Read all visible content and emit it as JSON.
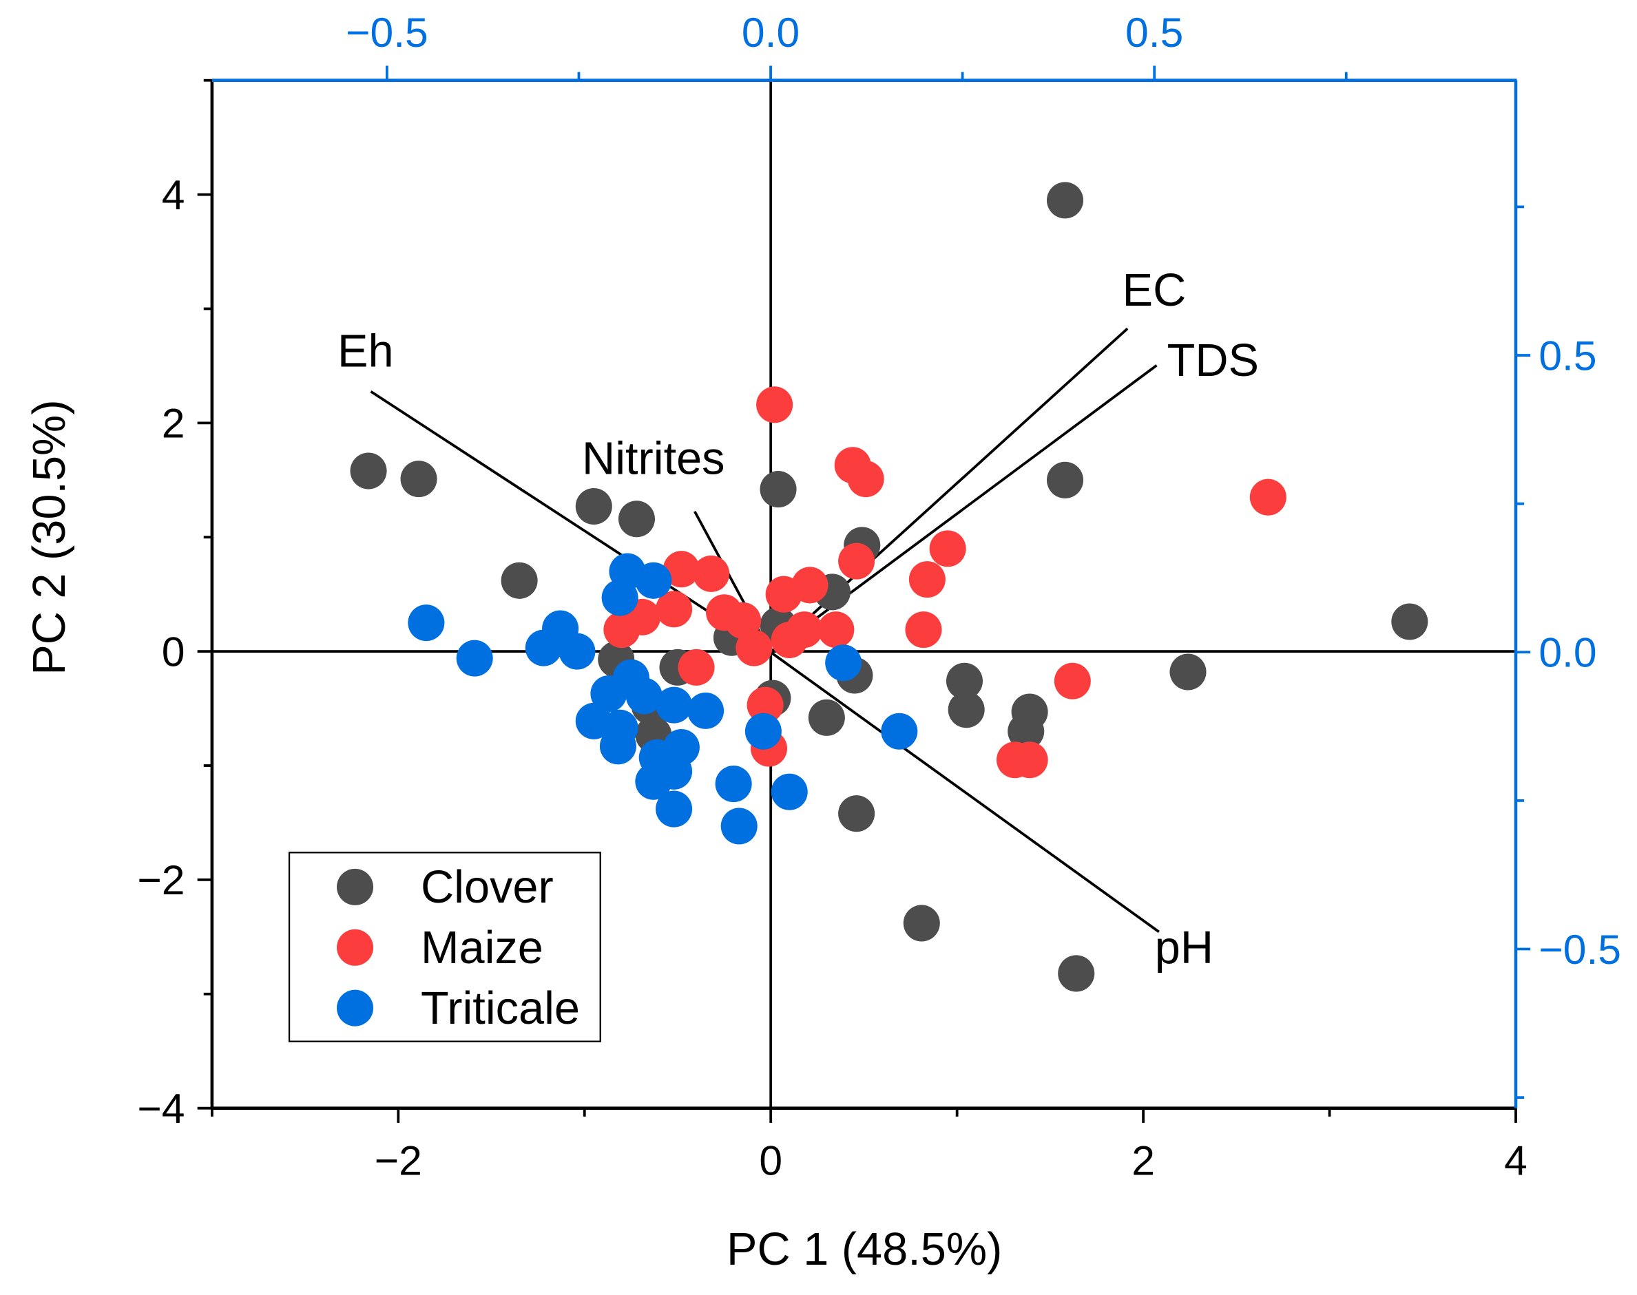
{
  "chart_data": {
    "type": "scatter",
    "subtype": "PCA biplot",
    "xlabel": "PC 1 (48.5%)",
    "ylabel": "PC 2 (30.5%)",
    "xlim": [
      -3,
      4
    ],
    "ylim": [
      -4,
      5
    ],
    "xticks": [
      -2,
      0,
      2,
      4
    ],
    "yticks": [
      -4,
      -2,
      0,
      2,
      4
    ],
    "xtick_labels": [
      "−2",
      "0",
      "2",
      "4"
    ],
    "ytick_labels": [
      "−4",
      "−2",
      "0",
      "2",
      "4"
    ],
    "loading_axes": {
      "xlim": [
        -0.728,
        0.971
      ],
      "ylim": [
        -0.768,
        0.963
      ],
      "xticks": [
        -0.5,
        0.0,
        0.5
      ],
      "yticks": [
        -0.5,
        0.0,
        0.5
      ],
      "xtick_labels": [
        "−0.5",
        "0.0",
        "0.5"
      ],
      "ytick_labels": [
        "−0.5",
        "0.0",
        "0.5"
      ],
      "color": "#0070e0"
    },
    "grid": false,
    "legend_placement": "bottom-left",
    "series": [
      {
        "name": "Clover",
        "color": "#4d4d4d",
        "points": [
          [
            1.58,
            3.95
          ],
          [
            -2.16,
            1.58
          ],
          [
            -1.89,
            1.51
          ],
          [
            -0.95,
            1.27
          ],
          [
            -0.72,
            1.16
          ],
          [
            0.04,
            1.42
          ],
          [
            1.58,
            1.5
          ],
          [
            -1.35,
            0.62
          ],
          [
            0.49,
            0.93
          ],
          [
            0.33,
            0.52
          ],
          [
            0.04,
            0.23
          ],
          [
            -0.21,
            0.12
          ],
          [
            3.43,
            0.26
          ],
          [
            2.24,
            -0.18
          ],
          [
            -0.83,
            -0.07
          ],
          [
            -0.5,
            -0.14
          ],
          [
            0.45,
            -0.21
          ],
          [
            -0.65,
            -0.48
          ],
          [
            0.01,
            -0.41
          ],
          [
            0.3,
            -0.58
          ],
          [
            1.04,
            -0.26
          ],
          [
            1.05,
            -0.51
          ],
          [
            1.39,
            -0.53
          ],
          [
            1.37,
            -0.7
          ],
          [
            0.46,
            -1.42
          ],
          [
            0.81,
            -2.38
          ],
          [
            1.64,
            -2.82
          ],
          [
            -0.63,
            -0.73
          ]
        ]
      },
      {
        "name": "Maize",
        "color": "#fc3d3d",
        "points": [
          [
            0.02,
            2.16
          ],
          [
            0.44,
            1.63
          ],
          [
            0.51,
            1.51
          ],
          [
            2.67,
            1.35
          ],
          [
            0.95,
            0.9
          ],
          [
            0.46,
            0.79
          ],
          [
            0.84,
            0.63
          ],
          [
            -0.48,
            0.72
          ],
          [
            -0.32,
            0.68
          ],
          [
            -0.8,
            0.19
          ],
          [
            -0.69,
            0.3
          ],
          [
            -0.52,
            0.37
          ],
          [
            -0.25,
            0.34
          ],
          [
            -0.15,
            0.27
          ],
          [
            0.07,
            0.5
          ],
          [
            0.21,
            0.58
          ],
          [
            0.35,
            0.19
          ],
          [
            0.18,
            0.19
          ],
          [
            0.1,
            0.1
          ],
          [
            -0.09,
            0.03
          ],
          [
            0.82,
            0.19
          ],
          [
            -0.4,
            -0.14
          ],
          [
            -0.03,
            -0.47
          ],
          [
            -0.01,
            -0.85
          ],
          [
            1.62,
            -0.26
          ],
          [
            1.31,
            -0.95
          ],
          [
            1.39,
            -0.95
          ]
        ]
      },
      {
        "name": "Triticale",
        "color": "#0070e0",
        "points": [
          [
            -0.77,
            0.7
          ],
          [
            -0.63,
            0.62
          ],
          [
            -0.81,
            0.47
          ],
          [
            -1.85,
            0.25
          ],
          [
            -1.59,
            -0.06
          ],
          [
            -1.13,
            0.2
          ],
          [
            -1.22,
            0.03
          ],
          [
            -1.04,
            0.0
          ],
          [
            -0.75,
            -0.23
          ],
          [
            -0.87,
            -0.37
          ],
          [
            -0.68,
            -0.39
          ],
          [
            -0.52,
            -0.47
          ],
          [
            -0.35,
            -0.52
          ],
          [
            -0.95,
            -0.61
          ],
          [
            -0.81,
            -0.67
          ],
          [
            -0.82,
            -0.83
          ],
          [
            -0.61,
            -0.93
          ],
          [
            -0.48,
            -0.84
          ],
          [
            -0.52,
            -1.05
          ],
          [
            -0.63,
            -1.14
          ],
          [
            -0.52,
            -1.38
          ],
          [
            -0.2,
            -1.16
          ],
          [
            -0.17,
            -1.53
          ],
          [
            0.1,
            -1.23
          ],
          [
            -0.04,
            -0.7
          ],
          [
            0.39,
            -0.1
          ],
          [
            0.69,
            -0.7
          ]
        ]
      }
    ],
    "loadings": [
      {
        "name": "Eh",
        "x": -0.521,
        "y": 0.439
      },
      {
        "name": "EC",
        "x": 0.465,
        "y": 0.545
      },
      {
        "name": "TDS",
        "x": 0.503,
        "y": 0.483
      },
      {
        "name": "pH",
        "x": 0.506,
        "y": -0.471
      },
      {
        "name": "Nitrites",
        "x": -0.099,
        "y": 0.237
      }
    ]
  }
}
